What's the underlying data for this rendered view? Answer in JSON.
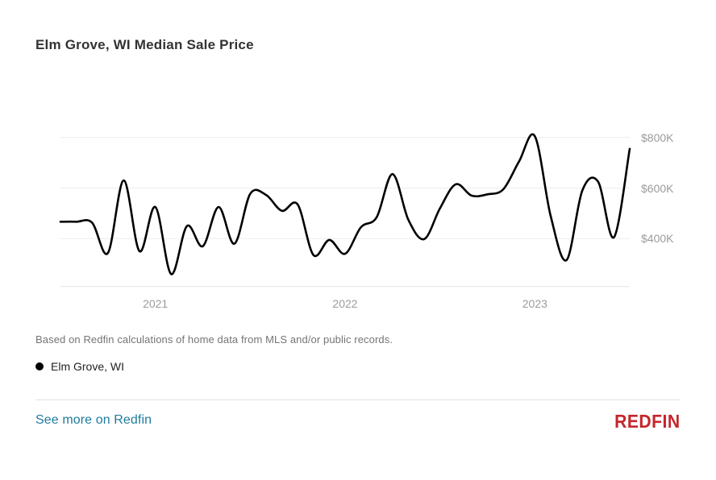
{
  "header": {
    "title": "Elm Grove, WI Median Sale Price"
  },
  "chart_data": {
    "type": "line",
    "title": "Elm Grove, WI Median Sale Price",
    "x": [
      "2020-07",
      "2020-08",
      "2020-09",
      "2020-10",
      "2020-11",
      "2020-12",
      "2021-01",
      "2021-02",
      "2021-03",
      "2021-04",
      "2021-05",
      "2021-06",
      "2021-07",
      "2021-08",
      "2021-09",
      "2021-10",
      "2021-11",
      "2021-12",
      "2022-01",
      "2022-02",
      "2022-03",
      "2022-04",
      "2022-05",
      "2022-06",
      "2022-07",
      "2022-08",
      "2022-09",
      "2022-10",
      "2022-11",
      "2022-12",
      "2023-01",
      "2023-02",
      "2023-03",
      "2023-04",
      "2023-05",
      "2023-06",
      "2023-07"
    ],
    "series": [
      {
        "name": "Elm Grove, WI",
        "color": "#000000",
        "values": [
          467000,
          467000,
          463000,
          343000,
          630000,
          350000,
          525000,
          260000,
          450000,
          370000,
          525000,
          380000,
          577000,
          573000,
          510000,
          535000,
          335000,
          395000,
          340000,
          445000,
          485000,
          655000,
          475000,
          398000,
          520000,
          615000,
          570000,
          575000,
          595000,
          705000,
          805000,
          490000,
          315000,
          590000,
          625000,
          405000,
          755000
        ]
      }
    ],
    "y_ticks": [
      {
        "value": 800000,
        "label": "$800K"
      },
      {
        "value": 600000,
        "label": "$600K"
      },
      {
        "value": 400000,
        "label": "$400K"
      }
    ],
    "x_ticks": [
      {
        "x": "2021-01",
        "label": "2021"
      },
      {
        "x": "2022-01",
        "label": "2022"
      },
      {
        "x": "2023-01",
        "label": "2023"
      }
    ],
    "ylim": [
      210000,
      870000
    ],
    "grid": "horizontal-only",
    "gridline_color": "#ececec",
    "axis_line_color": "#e3e3e3",
    "legend_position": "below-chart-left"
  },
  "footnote": {
    "text": "Based on Redfin calculations of home data from MLS and/or public records."
  },
  "legend": {
    "label": "Elm Grove, WI",
    "marker_color": "#000000"
  },
  "footer": {
    "link_label": "See more on Redfin",
    "link_color": "#1e7b9e",
    "logo_text": "REDFIN",
    "logo_color": "#c5262c"
  }
}
